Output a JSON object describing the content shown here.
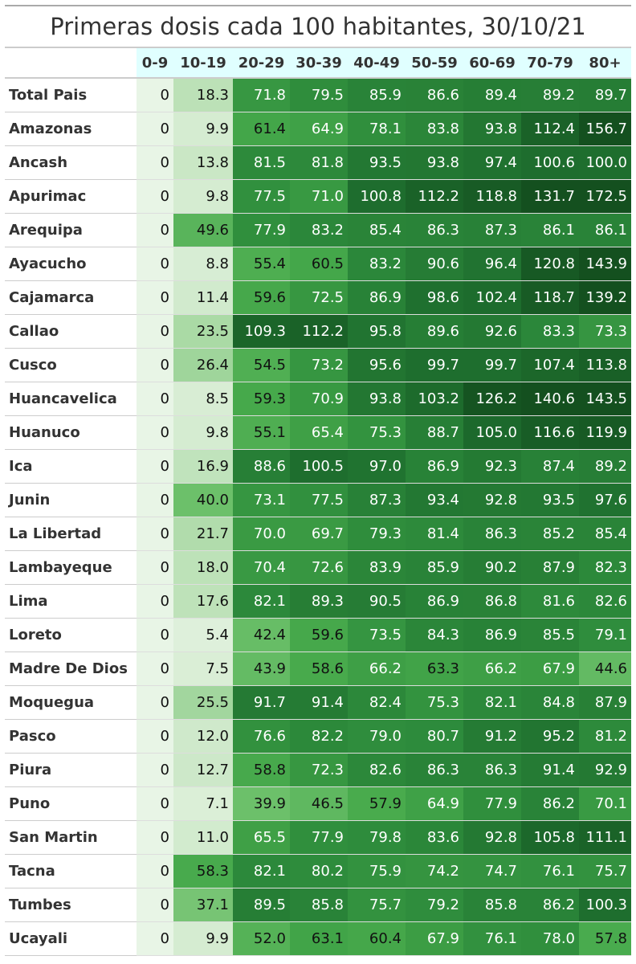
{
  "title": "Primeras dosis cada 100 habitantes, 30/10/21",
  "table": {
    "columns": [
      "0-9",
      "10-19",
      "20-29",
      "30-39",
      "40-49",
      "50-59",
      "60-69",
      "70-79",
      "80+"
    ],
    "rows": [
      [
        "Total Pais",
        "0",
        "18.3",
        "71.8",
        "79.5",
        "85.9",
        "86.6",
        "89.4",
        "89.2",
        "89.7"
      ],
      [
        "Amazonas",
        "0",
        "9.9",
        "61.4",
        "64.9",
        "78.1",
        "83.8",
        "93.8",
        "112.4",
        "156.7"
      ],
      [
        "Ancash",
        "0",
        "13.8",
        "81.5",
        "81.8",
        "93.5",
        "93.8",
        "97.4",
        "100.6",
        "100.0"
      ],
      [
        "Apurimac",
        "0",
        "9.8",
        "77.5",
        "71.0",
        "100.8",
        "112.2",
        "118.8",
        "131.7",
        "172.5"
      ],
      [
        "Arequipa",
        "0",
        "49.6",
        "77.9",
        "83.2",
        "85.4",
        "86.3",
        "87.3",
        "86.1",
        "86.1"
      ],
      [
        "Ayacucho",
        "0",
        "8.8",
        "55.4",
        "60.5",
        "83.2",
        "90.6",
        "96.4",
        "120.8",
        "143.9"
      ],
      [
        "Cajamarca",
        "0",
        "11.4",
        "59.6",
        "72.5",
        "86.9",
        "98.6",
        "102.4",
        "118.7",
        "139.2"
      ],
      [
        "Callao",
        "0",
        "23.5",
        "109.3",
        "112.2",
        "95.8",
        "89.6",
        "92.6",
        "83.3",
        "73.3"
      ],
      [
        "Cusco",
        "0",
        "26.4",
        "54.5",
        "73.2",
        "95.6",
        "99.7",
        "99.7",
        "107.4",
        "113.8"
      ],
      [
        "Huancavelica",
        "0",
        "8.5",
        "59.3",
        "70.9",
        "93.8",
        "103.2",
        "126.2",
        "140.6",
        "143.5"
      ],
      [
        "Huanuco",
        "0",
        "9.8",
        "55.1",
        "65.4",
        "75.3",
        "88.7",
        "105.0",
        "116.6",
        "119.9"
      ],
      [
        "Ica",
        "0",
        "16.9",
        "88.6",
        "100.5",
        "97.0",
        "86.9",
        "92.3",
        "87.4",
        "89.2"
      ],
      [
        "Junin",
        "0",
        "40.0",
        "73.1",
        "77.5",
        "87.3",
        "93.4",
        "92.8",
        "93.5",
        "97.6"
      ],
      [
        "La Libertad",
        "0",
        "21.7",
        "70.0",
        "69.7",
        "79.3",
        "81.4",
        "86.3",
        "85.2",
        "85.4"
      ],
      [
        "Lambayeque",
        "0",
        "18.0",
        "70.4",
        "72.6",
        "83.9",
        "85.9",
        "90.2",
        "87.9",
        "82.3"
      ],
      [
        "Lima",
        "0",
        "17.6",
        "82.1",
        "89.3",
        "90.5",
        "86.9",
        "86.8",
        "81.6",
        "82.6"
      ],
      [
        "Loreto",
        "0",
        "5.4",
        "42.4",
        "59.6",
        "73.5",
        "84.3",
        "86.9",
        "85.5",
        "79.1"
      ],
      [
        "Madre De Dios",
        "0",
        "7.5",
        "43.9",
        "58.6",
        "66.2",
        "63.3",
        "66.2",
        "67.9",
        "44.6"
      ],
      [
        "Moquegua",
        "0",
        "25.5",
        "91.7",
        "91.4",
        "82.4",
        "75.3",
        "82.1",
        "84.8",
        "87.9"
      ],
      [
        "Pasco",
        "0",
        "12.0",
        "76.6",
        "82.2",
        "79.0",
        "80.7",
        "91.2",
        "95.2",
        "81.2"
      ],
      [
        "Piura",
        "0",
        "12.7",
        "58.8",
        "72.3",
        "82.6",
        "86.3",
        "86.3",
        "91.4",
        "92.9"
      ],
      [
        "Puno",
        "0",
        "7.1",
        "39.9",
        "46.5",
        "57.9",
        "64.9",
        "77.9",
        "86.2",
        "70.1"
      ],
      [
        "San Martin",
        "0",
        "11.0",
        "65.5",
        "77.9",
        "79.8",
        "83.6",
        "92.8",
        "105.8",
        "111.1"
      ],
      [
        "Tacna",
        "0",
        "58.3",
        "82.1",
        "80.2",
        "75.9",
        "74.2",
        "74.7",
        "76.1",
        "75.7"
      ],
      [
        "Tumbes",
        "0",
        "37.1",
        "89.5",
        "85.8",
        "75.7",
        "79.2",
        "85.8",
        "86.2",
        "100.3"
      ],
      [
        "Ucayali",
        "0",
        "9.9",
        "52.0",
        "63.1",
        "60.4",
        "67.9",
        "76.1",
        "78.0",
        "57.8"
      ]
    ]
  }
}
